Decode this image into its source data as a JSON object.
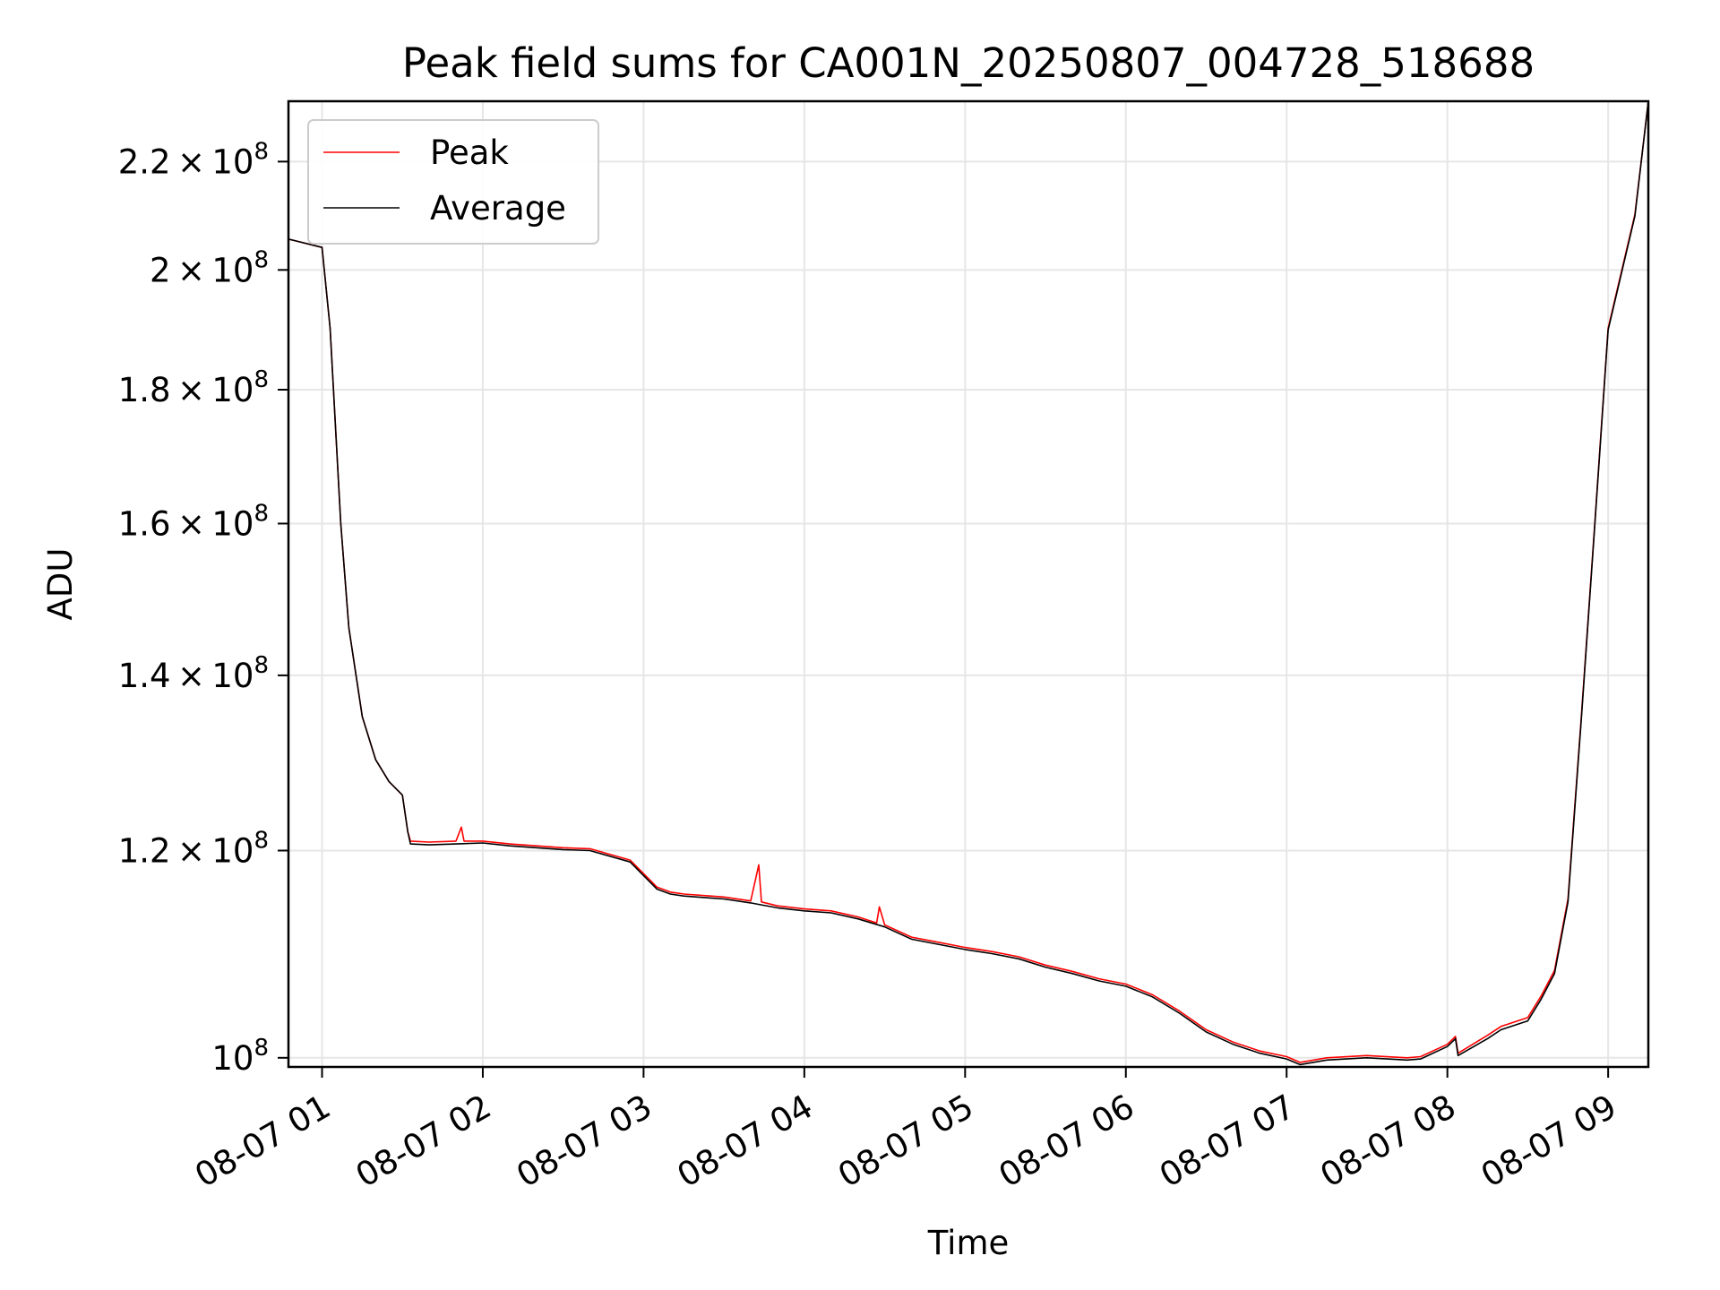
{
  "chart_data": {
    "type": "line",
    "title": "Peak field sums for CA001N_20250807_004728_518688",
    "xlabel": "Time",
    "ylabel": "ADU",
    "yscale": "log",
    "grid": true,
    "legend_position": "upper-left",
    "xlim": [
      "2025-08-07 00:47:28",
      "2025-08-07 09:15:00"
    ],
    "ylim": [
      99200000,
      232000000
    ],
    "x_ticks": [
      "08-07 01",
      "08-07 02",
      "08-07 03",
      "08-07 04",
      "08-07 05",
      "08-07 06",
      "08-07 07",
      "08-07 08",
      "08-07 09"
    ],
    "y_ticks": [
      {
        "value": 100000000,
        "mantissa": "",
        "exponent": "8"
      },
      {
        "value": 120000000,
        "mantissa": "1.2",
        "exponent": "8"
      },
      {
        "value": 140000000,
        "mantissa": "1.4",
        "exponent": "8"
      },
      {
        "value": 160000000,
        "mantissa": "1.6",
        "exponent": "8"
      },
      {
        "value": 180000000,
        "mantissa": "1.8",
        "exponent": "8"
      },
      {
        "value": 200000000,
        "mantissa": "2",
        "exponent": "8"
      },
      {
        "value": 220000000,
        "mantissa": "2.2",
        "exponent": "8"
      }
    ],
    "series": [
      {
        "name": "Peak",
        "color": "#ff0000",
        "x": [
          "00:47:28",
          "01:00",
          "01:03",
          "01:07",
          "01:10",
          "01:15",
          "01:20",
          "01:25",
          "01:30",
          "01:32",
          "01:33",
          "01:40",
          "01:50",
          "01:52",
          "01:53",
          "02:00",
          "02:10",
          "02:20",
          "02:30",
          "02:40",
          "02:55",
          "03:05",
          "03:10",
          "03:15",
          "03:25",
          "03:30",
          "03:40",
          "03:43",
          "03:44",
          "03:50",
          "04:00",
          "04:10",
          "04:20",
          "04:27",
          "04:28",
          "04:30",
          "04:40",
          "04:50",
          "05:00",
          "05:10",
          "05:20",
          "05:30",
          "05:40",
          "05:50",
          "06:00",
          "06:10",
          "06:20",
          "06:30",
          "06:40",
          "06:50",
          "07:00",
          "07:05",
          "07:15",
          "07:30",
          "07:45",
          "07:50",
          "08:00",
          "08:03",
          "08:04",
          "08:15",
          "08:20",
          "08:30",
          "08:35",
          "08:40",
          "08:45",
          "08:50",
          "08:55",
          "09:00",
          "09:10",
          "09:15"
        ],
        "values": [
          205500000,
          204000000,
          190000000,
          160000000,
          146000000,
          135000000,
          130000000,
          127500000,
          126000000,
          122000000,
          121000000,
          120900000,
          121000000,
          122500000,
          121000000,
          121000000,
          120700000,
          120500000,
          120300000,
          120200000,
          119000000,
          116200000,
          115700000,
          115500000,
          115300000,
          115200000,
          114800000,
          118500000,
          114700000,
          114300000,
          114000000,
          113800000,
          113200000,
          112600000,
          114200000,
          112400000,
          111200000,
          110700000,
          110200000,
          109800000,
          109300000,
          108500000,
          107900000,
          107200000,
          106700000,
          105700000,
          104200000,
          102500000,
          101400000,
          100600000,
          100100000,
          99600000,
          100000000,
          100200000,
          100000000,
          100100000,
          101200000,
          101900000,
          100400000,
          102000000,
          102800000,
          103600000,
          105600000,
          108000000,
          115000000,
          135000000,
          160000000,
          190000000,
          210000000,
          232000000
        ]
      },
      {
        "name": "Average",
        "color": "#000000",
        "x": [
          "00:47:28",
          "01:00",
          "01:03",
          "01:07",
          "01:10",
          "01:15",
          "01:20",
          "01:25",
          "01:30",
          "01:32",
          "01:33",
          "01:40",
          "01:50",
          "02:00",
          "02:10",
          "02:20",
          "02:30",
          "02:40",
          "02:55",
          "03:05",
          "03:10",
          "03:15",
          "03:25",
          "03:30",
          "03:40",
          "03:44",
          "03:50",
          "04:00",
          "04:10",
          "04:20",
          "04:30",
          "04:40",
          "04:50",
          "05:00",
          "05:10",
          "05:20",
          "05:30",
          "05:40",
          "05:50",
          "06:00",
          "06:10",
          "06:20",
          "06:30",
          "06:40",
          "06:50",
          "07:00",
          "07:05",
          "07:15",
          "07:30",
          "07:45",
          "07:50",
          "08:00",
          "08:03",
          "08:04",
          "08:15",
          "08:20",
          "08:30",
          "08:35",
          "08:40",
          "08:45",
          "08:50",
          "08:55",
          "09:00",
          "09:10",
          "09:15"
        ],
        "values": [
          205500000,
          204000000,
          190000000,
          160000000,
          146000000,
          135000000,
          130000000,
          127500000,
          126000000,
          122000000,
          120700000,
          120600000,
          120700000,
          120800000,
          120500000,
          120300000,
          120100000,
          120000000,
          118800000,
          116000000,
          115500000,
          115300000,
          115100000,
          115000000,
          114600000,
          114400000,
          114100000,
          113800000,
          113600000,
          113000000,
          112200000,
          111000000,
          110500000,
          110000000,
          109600000,
          109100000,
          108300000,
          107700000,
          107000000,
          106500000,
          105500000,
          104000000,
          102300000,
          101200000,
          100400000,
          99900000,
          99400000,
          99800000,
          100000000,
          99800000,
          99900000,
          101000000,
          101700000,
          100200000,
          101700000,
          102500000,
          103300000,
          105300000,
          107700000,
          114700000,
          134700000,
          159700000,
          189700000,
          209700000,
          232000000
        ]
      }
    ]
  }
}
